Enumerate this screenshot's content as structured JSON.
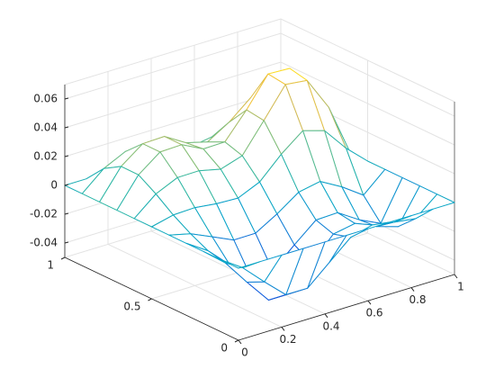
{
  "chart_data": {
    "type": "mesh",
    "x": [
      0,
      0.1,
      0.2,
      0.3,
      0.4,
      0.5,
      0.6,
      0.7,
      0.8,
      0.9,
      1
    ],
    "y": [
      0,
      0.1,
      0.2,
      0.3,
      0.4,
      0.5,
      0.6,
      0.7,
      0.8,
      0.9,
      1
    ],
    "z": [
      [
        0,
        0,
        0,
        0,
        0,
        0,
        0,
        0,
        0,
        0,
        0
      ],
      [
        0,
        -0.01,
        -0.0243,
        -0.0378,
        -0.0379,
        -0.0247,
        -0.0116,
        -0.0077,
        -0.0103,
        -0.0124,
        0
      ],
      [
        0,
        -0.0124,
        -0.0303,
        -0.0473,
        -0.0474,
        -0.0308,
        -0.0152,
        -0.0124,
        -0.019,
        -0.0236,
        0
      ],
      [
        0,
        -0.0097,
        -0.0239,
        -0.0374,
        -0.0374,
        -0.0239,
        -0.0112,
        -0.0106,
        -0.0201,
        -0.0272,
        0
      ],
      [
        0,
        -0.0037,
        -0.0103,
        -0.0171,
        -0.017,
        -0.0082,
        0.0024,
        0.0053,
        -0.003,
        -0.0134,
        0
      ],
      [
        0,
        0.0036,
        0.0042,
        0.0023,
        0.0017,
        0.0083,
        0.023,
        0.0348,
        0.0303,
        0.0135,
        0
      ],
      [
        0,
        0.0125,
        0.0193,
        0.0195,
        0.016,
        0.0208,
        0.0407,
        0.0611,
        0.0594,
        0.0362,
        0
      ],
      [
        0,
        0.02,
        0.0313,
        0.0318,
        0.0243,
        0.0246,
        0.0423,
        0.0627,
        0.062,
        0.0394,
        0
      ],
      [
        0,
        0.0201,
        0.0313,
        0.0318,
        0.0229,
        0.0188,
        0.028,
        0.0405,
        0.0402,
        0.0257,
        0
      ],
      [
        0,
        0.0129,
        0.0201,
        0.0203,
        0.0141,
        0.0096,
        0.012,
        0.0167,
        0.0165,
        0.0106,
        0
      ],
      [
        0,
        0,
        0,
        0,
        0,
        0,
        0,
        0,
        0,
        0,
        0
      ]
    ],
    "xlim": [
      0,
      1
    ],
    "ylim": [
      0,
      1
    ],
    "zlim": [
      -0.05,
      0.07
    ],
    "xticks": [
      0,
      0.2,
      0.4,
      0.6,
      0.8,
      1
    ],
    "yticks": [
      0,
      0.5,
      1
    ],
    "zticks": [
      -0.04,
      -0.02,
      0,
      0.02,
      0.04,
      0.06
    ],
    "grid": true,
    "colormap": [
      "#352a87",
      "#0f5cdd",
      "#1481d6",
      "#06a4ca",
      "#2eb7a4",
      "#87bf77",
      "#d1bb59",
      "#fec832",
      "#f9fb0e"
    ]
  }
}
